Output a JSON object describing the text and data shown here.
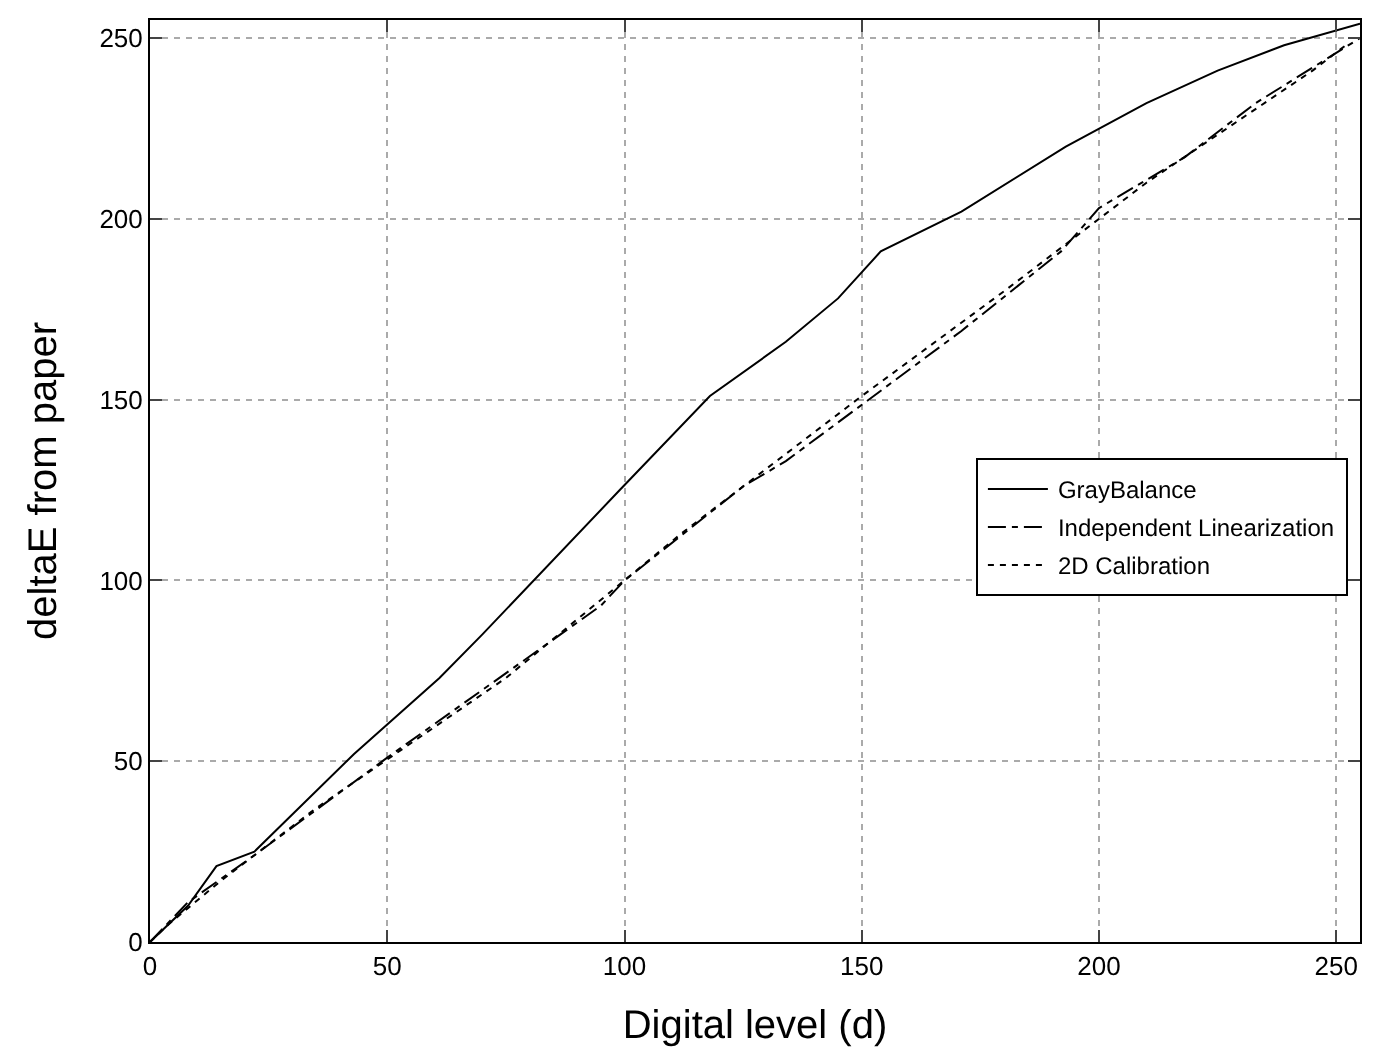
{
  "chart_data": {
    "type": "line",
    "xlabel": "Digital level (d)",
    "ylabel": "deltaE from paper",
    "xlim": [
      0,
      255
    ],
    "ylim": [
      0,
      255
    ],
    "xticks": [
      0,
      50,
      100,
      150,
      200,
      250
    ],
    "yticks": [
      0,
      50,
      100,
      150,
      200,
      250
    ],
    "grid": true,
    "legend": "right",
    "marker": "none",
    "series": [
      {
        "name": "GrayBalance",
        "color": "#000000",
        "line_style": "solid",
        "x": [
          0,
          8,
          14,
          22,
          43,
          61,
          70,
          99,
          118,
          134,
          145,
          154,
          171,
          193,
          210,
          225,
          239,
          255
        ],
        "values": [
          0,
          10,
          21,
          25,
          52,
          73,
          85,
          125,
          151,
          166,
          178,
          191,
          202,
          220,
          232,
          241,
          248,
          254
        ]
      },
      {
        "name": "Independent Linearization",
        "color": "#000000",
        "line_style": "dashdot",
        "x": [
          0,
          8,
          22,
          50,
          95,
          100,
          125,
          134,
          171,
          192,
          200,
          218,
          233,
          255
        ],
        "values": [
          0,
          11,
          24,
          51,
          93,
          100,
          126,
          133,
          169,
          191,
          203,
          217,
          232,
          250
        ]
      },
      {
        "name": "2D Calibration",
        "color": "#000000",
        "line_style": "dotted",
        "x": [
          0,
          4,
          15,
          35,
          75,
          112,
          150,
          180,
          210,
          245,
          252
        ],
        "values": [
          0,
          5,
          17,
          37,
          73,
          113,
          151,
          180,
          210,
          241,
          248
        ]
      }
    ]
  }
}
